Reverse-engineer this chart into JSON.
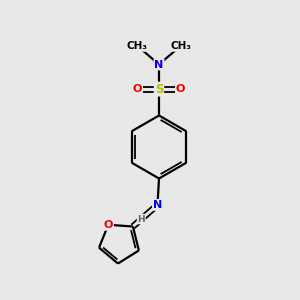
{
  "background_color": "#e8e8e8",
  "bond_color": "#000000",
  "atom_colors": {
    "N": "#0000ee",
    "O": "#ee0000",
    "S": "#bbbb00",
    "C": "#000000",
    "H": "#606060"
  },
  "figsize": [
    3.0,
    3.0
  ],
  "dpi": 100
}
